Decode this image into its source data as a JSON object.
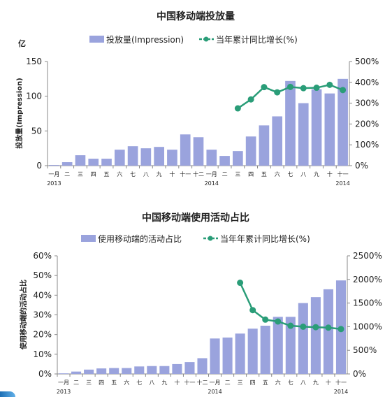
{
  "chart_data": [
    {
      "type": "bar+line",
      "title": "中国移动端投放量",
      "unit_label": "亿",
      "ylabel": "投放量(Impression)",
      "ylim": [
        0,
        150
      ],
      "y_ticks": [
        "0",
        "50",
        "100",
        "150"
      ],
      "y2lim": [
        0,
        500
      ],
      "y2_ticks": [
        "0%",
        "100%",
        "200%",
        "300%",
        "400%",
        "500%"
      ],
      "categories": [
        "一月",
        "二",
        "三",
        "四",
        "五",
        "六",
        "七",
        "八",
        "九",
        "十",
        "十一",
        "十二",
        "一月",
        "二",
        "三",
        "四",
        "五",
        "六",
        "七",
        "八",
        "九",
        "十",
        "十一"
      ],
      "year_labels": [
        {
          "index": 0,
          "text": "2013"
        },
        {
          "index": 12,
          "text": "2014"
        },
        {
          "index": 22,
          "text": "2014"
        }
      ],
      "series": [
        {
          "name": "投放量(Impression)",
          "kind": "bar",
          "color": "#9aa3dd",
          "values": [
            1,
            5,
            15,
            10,
            10,
            23,
            28,
            25,
            27,
            23,
            45,
            41,
            23,
            14,
            21,
            42,
            58,
            71,
            122,
            90,
            110,
            104,
            125
          ]
        },
        {
          "name": "当年累计同比增长(%)",
          "kind": "line",
          "axis": "right",
          "color": "#2a9d78",
          "values": [
            null,
            null,
            null,
            null,
            null,
            null,
            null,
            null,
            null,
            null,
            null,
            null,
            null,
            null,
            275,
            318,
            377,
            352,
            378,
            372,
            374,
            388,
            363
          ]
        }
      ]
    },
    {
      "type": "bar+line",
      "title": "中国移动端使用活动占比",
      "ylabel": "使用移动端的活动占比",
      "ylim": [
        0,
        60
      ],
      "y_ticks": [
        "0%",
        "10%",
        "20%",
        "30%",
        "40%",
        "50%",
        "60%"
      ],
      "y2lim": [
        0,
        2500
      ],
      "y2_ticks": [
        "0%",
        "500%",
        "1000%",
        "1500%",
        "2000%",
        "2500%"
      ],
      "categories": [
        "一月",
        "二",
        "三",
        "四",
        "五",
        "六",
        "七",
        "八",
        "九",
        "十",
        "十一",
        "十二",
        "一月",
        "二",
        "三",
        "四",
        "五",
        "六",
        "七",
        "八",
        "九",
        "十",
        "十一"
      ],
      "year_labels": [
        {
          "index": 0,
          "text": "2013"
        },
        {
          "index": 12,
          "text": "2014"
        },
        {
          "index": 22,
          "text": "2014"
        }
      ],
      "series": [
        {
          "name": "使用移动端的活动占比",
          "kind": "bar",
          "color": "#9aa3dd",
          "values": [
            0.3,
            1.2,
            2.2,
            2.8,
            3.0,
            3.0,
            3.8,
            4.0,
            4.0,
            5.0,
            6.0,
            8.0,
            18.0,
            18.5,
            20.5,
            23.0,
            24.5,
            29.0,
            29.0,
            36.0,
            39.0,
            43.0,
            47.5
          ]
        },
        {
          "name": "当年年累计同比增长(%)",
          "kind": "line",
          "axis": "right",
          "color": "#2a9d78",
          "values": [
            null,
            null,
            null,
            null,
            null,
            null,
            null,
            null,
            null,
            null,
            null,
            null,
            null,
            null,
            1930,
            1350,
            1150,
            1110,
            1020,
            1000,
            990,
            980,
            950
          ]
        }
      ]
    }
  ]
}
